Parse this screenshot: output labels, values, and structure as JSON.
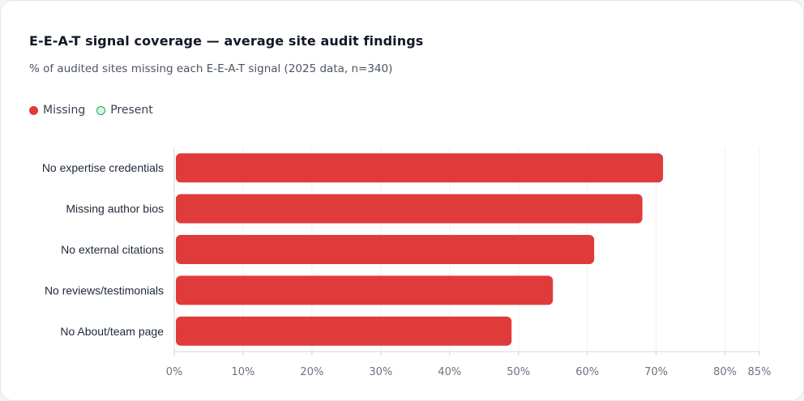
{
  "header": {
    "title": "E-E-A-T signal coverage — average site audit findings",
    "subtitle": "% of audited sites missing each E-E-A-T signal (2025 data, n=340)"
  },
  "legend": {
    "items": [
      {
        "label": "Missing",
        "color": "#e03b3b"
      },
      {
        "label": "Present",
        "color": "#22a05a"
      }
    ]
  },
  "chart_data": {
    "type": "bar",
    "orientation": "horizontal",
    "categories": [
      "No expertise credentials",
      "Missing author bios",
      "No external citations",
      "No reviews/testimonials",
      "No About/team page"
    ],
    "series": [
      {
        "name": "Missing",
        "values": [
          71,
          68,
          61,
          55,
          49
        ],
        "color": "#e03b3b"
      }
    ],
    "xlim": [
      0,
      85
    ],
    "xticks": [
      0,
      10,
      20,
      30,
      40,
      50,
      60,
      70,
      80,
      85
    ],
    "xtick_labels": [
      "0%",
      "10%",
      "20%",
      "30%",
      "40%",
      "50%",
      "60%",
      "70%",
      "80%",
      "85%"
    ],
    "grid": "vertical",
    "legend_position": "top-left"
  }
}
